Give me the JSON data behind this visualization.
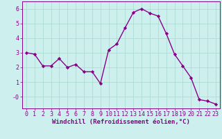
{
  "x": [
    0,
    1,
    2,
    3,
    4,
    5,
    6,
    7,
    8,
    9,
    10,
    11,
    12,
    13,
    14,
    15,
    16,
    17,
    18,
    19,
    20,
    21,
    22,
    23
  ],
  "y": [
    3.0,
    2.9,
    2.1,
    2.1,
    2.6,
    2.0,
    2.2,
    1.7,
    1.7,
    0.9,
    3.2,
    3.6,
    4.7,
    5.75,
    6.0,
    5.7,
    5.5,
    4.3,
    2.9,
    2.1,
    1.3,
    -0.2,
    -0.3,
    -0.5
  ],
  "line_color": "#880088",
  "marker": "D",
  "marker_size": 2.2,
  "bg_color": "#cdf0ee",
  "grid_color": "#aad8cc",
  "xlabel": "Windchill (Refroidissement éolien,°C)",
  "xlabel_color": "#880088",
  "xlabel_fontsize": 6.5,
  "tick_color": "#880088",
  "tick_fontsize": 6.0,
  "ylim": [
    -0.8,
    6.5
  ],
  "xlim": [
    -0.5,
    23.5
  ],
  "yticks": [
    0,
    1,
    2,
    3,
    4,
    5,
    6
  ],
  "ytick_labels": [
    "-0",
    "1",
    "2",
    "3",
    "4",
    "5",
    "6"
  ],
  "xticks": [
    0,
    1,
    2,
    3,
    4,
    5,
    6,
    7,
    8,
    9,
    10,
    11,
    12,
    13,
    14,
    15,
    16,
    17,
    18,
    19,
    20,
    21,
    22,
    23
  ],
  "line_width": 1.0
}
